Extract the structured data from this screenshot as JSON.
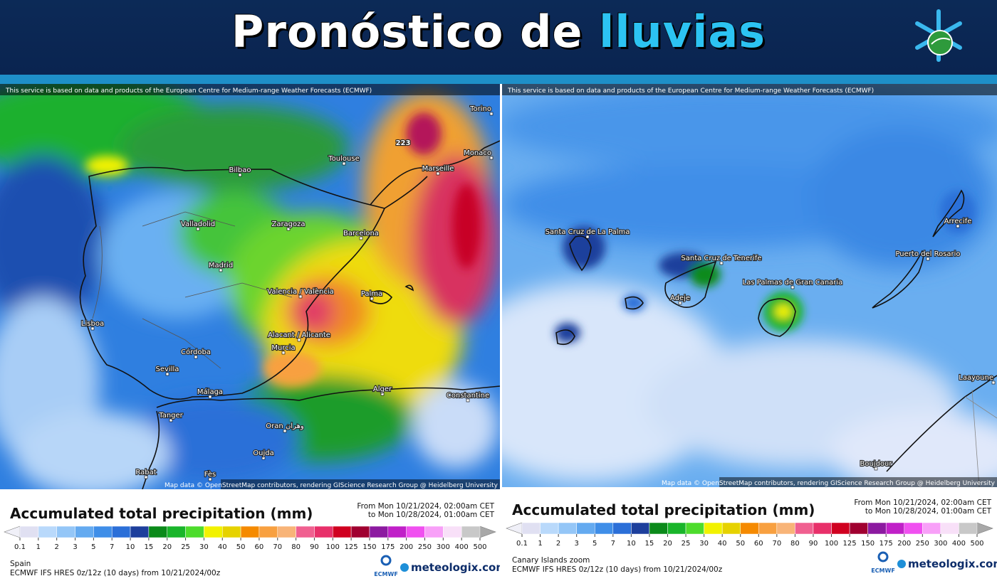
{
  "header": {
    "title": "Pronóstico de",
    "title_highlight": "lluvias"
  },
  "panels": [
    {
      "attribution": "This service is based on data and products of the European Centre for Medium-range Weather Forecasts (ECMWF)",
      "map_credit": "Map data © OpenStreetMap contributors, rendering GIScience Research Group @ Heidelberg University",
      "max_label": "223",
      "cities": [
        "Torino",
        "Marseille",
        "Monaco",
        "Toulouse",
        "Bilbao",
        "Valladolid",
        "Zaragoza",
        "Barcelona",
        "Madrid",
        "Lisboa",
        "Valencia / València",
        "Palma",
        "Alacant / Alicante",
        "Murcia",
        "Córdoba",
        "Sevilla",
        "Málaga",
        "Alger",
        "Constantine",
        "Tanger",
        "Oran وهران",
        "Oujda",
        "Rabat",
        "Fès"
      ],
      "legend_title": "Accumulated total precipitation (mm)",
      "period_from": "From Mon 10/21/2024, 02:00am CET",
      "period_to": "to Mon 10/28/2024, 01:00am CET",
      "region": "Spain",
      "model": "ECMWF IFS HRES 0z/12z (10 days) from 10/21/2024/00z",
      "ecmwf_logo": "ECMWF",
      "brand": "meteologix.com"
    },
    {
      "attribution": "This service is based on data and products of the European Centre for Medium-range Weather Forecasts (ECMWF)",
      "map_credit": "Map data © OpenStreetMap contributors, rendering GIScience Research Group @ Heidelberg University",
      "cities": [
        "Santa Cruz de La Palma",
        "Santa Cruz de Tenerife",
        "Adeje",
        "Las Palmas de Gran Canaria",
        "Puerto del Rosario",
        "Arrecife",
        "Laayoune",
        "Boujdour"
      ],
      "legend_title": "Accumulated total precipitation (mm)",
      "period_from": "From Mon 10/21/2024, 02:00am CET",
      "period_to": "to Mon 10/28/2024, 01:00am CET",
      "region": "Canary Islands zoom",
      "model": "ECMWF IFS HRES 0z/12z (10 days) from 10/21/2024/00z",
      "ecmwf_logo": "ECMWF",
      "brand": "meteologix.com"
    }
  ],
  "scale": {
    "ticks": [
      "0.1",
      "1",
      "2",
      "3",
      "5",
      "7",
      "10",
      "15",
      "20",
      "25",
      "30",
      "40",
      "50",
      "60",
      "70",
      "80",
      "90",
      "100",
      "125",
      "150",
      "175",
      "200",
      "250",
      "300",
      "400",
      "500"
    ],
    "colors": [
      "#e0e0f2",
      "#b9d9fb",
      "#94c6f7",
      "#64aaf0",
      "#3f8ee8",
      "#2b6fd8",
      "#1d3f9c",
      "#0b8a1a",
      "#19b52a",
      "#4ddc2c",
      "#f2f200",
      "#e6d200",
      "#f58a00",
      "#f8a040",
      "#f8b478",
      "#f06090",
      "#e8306a",
      "#d00020",
      "#a00030",
      "#8c1aa0",
      "#c020c8",
      "#f050f0",
      "#f8a0f8",
      "#f8e0f8",
      "#c8c8c8"
    ]
  }
}
